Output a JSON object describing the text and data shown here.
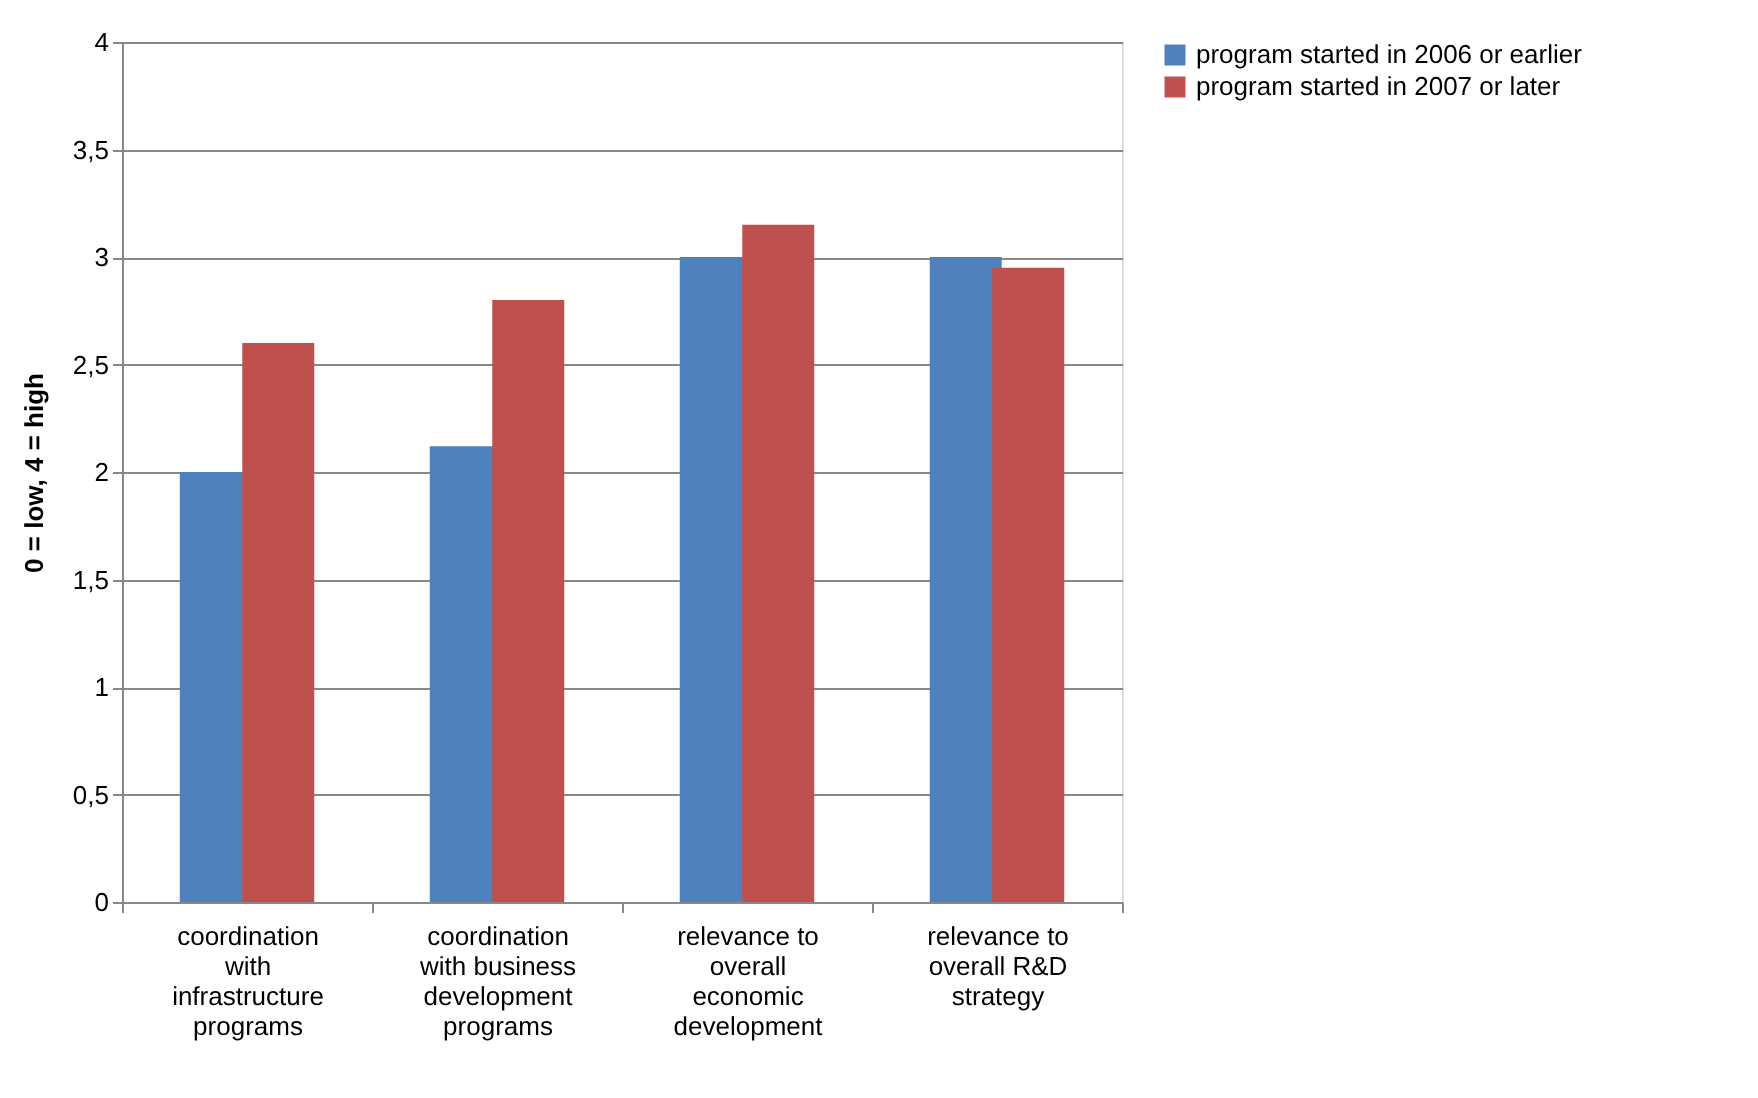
{
  "chart_data": {
    "type": "bar",
    "ylabel": "0 = low, 4 = high",
    "categories": [
      "coordination with infrastructure programs",
      "coordination with business development programs",
      "relevance to overall economic development",
      "relevance to overall R&D strategy"
    ],
    "series": [
      {
        "name": "program started in 2006 or earlier",
        "color": "#4f81bd",
        "values": [
          2.0,
          2.12,
          3.0,
          3.0
        ]
      },
      {
        "name": "program started in 2007 or later",
        "color": "#c0504d",
        "values": [
          2.6,
          2.8,
          3.15,
          2.95
        ]
      }
    ],
    "ylim": [
      0,
      4
    ],
    "yticks": [
      0,
      {
        "value": 0.5,
        "label": "0,5"
      },
      1,
      {
        "value": 1.5,
        "label": "1,5"
      },
      2,
      {
        "value": 2.5,
        "label": "2,5"
      },
      3,
      {
        "value": 3.5,
        "label": "3,5"
      },
      4
    ],
    "grid": "y",
    "legend": "right"
  }
}
